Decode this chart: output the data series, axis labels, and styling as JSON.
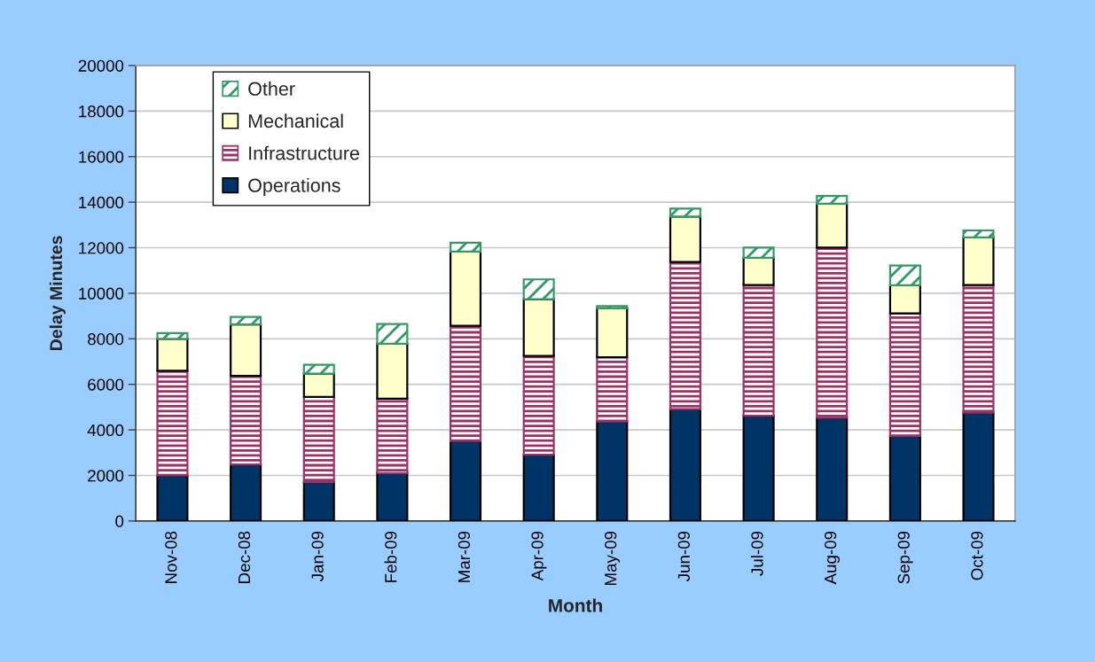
{
  "chart_data": {
    "type": "bar",
    "stacked": true,
    "xlabel": "Month",
    "ylabel": "Delay Minutes",
    "categories": [
      "Nov-08",
      "Dec-08",
      "Jan-09",
      "Feb-09",
      "Mar-09",
      "Apr-09",
      "May-09",
      "Jun-09",
      "Jul-09",
      "Aug-09",
      "Sep-09",
      "Oct-09"
    ],
    "series": [
      {
        "name": "Operations",
        "color": "#003366",
        "values": [
          2000,
          2480,
          1710,
          2100,
          3510,
          2910,
          4370,
          4910,
          4620,
          4530,
          3740,
          4760
        ]
      },
      {
        "name": "Infrastructure",
        "color": "#993366",
        "values": [
          4600,
          3890,
          3740,
          3270,
          5060,
          4340,
          2820,
          6460,
          5740,
          7480,
          5380,
          5600
        ]
      },
      {
        "name": "Mechanical",
        "color": "#ffffcc",
        "values": [
          1400,
          2260,
          1020,
          2410,
          3260,
          2490,
          2150,
          2000,
          1200,
          1920,
          1230,
          2090
        ]
      },
      {
        "name": "Other",
        "color": "#339966",
        "values": [
          250,
          330,
          390,
          870,
          390,
          870,
          100,
          350,
          450,
          340,
          870,
          310
        ]
      }
    ],
    "ylim": [
      0,
      20000
    ],
    "yticks": [
      0,
      2000,
      4000,
      6000,
      8000,
      10000,
      12000,
      14000,
      16000,
      18000,
      20000
    ],
    "grid": "y",
    "legend": "top left"
  }
}
